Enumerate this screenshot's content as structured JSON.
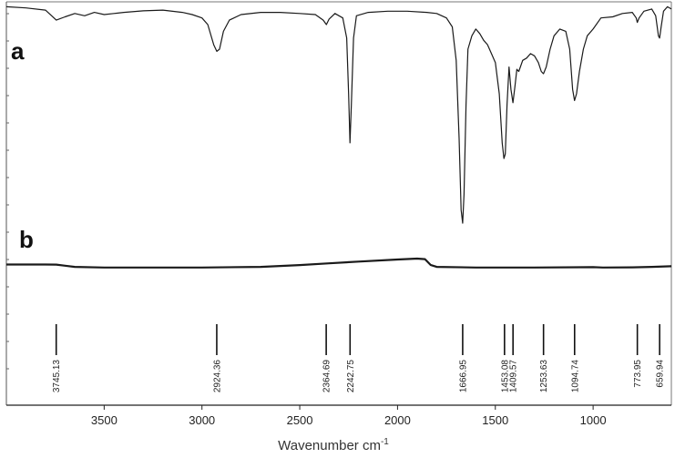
{
  "chart_data": {
    "type": "line",
    "xlabel_main": "Wavenumber cm",
    "xlabel_sup": "-1",
    "xlim": [
      4000,
      600
    ],
    "x_reversed": true,
    "x_ticks": [
      3500,
      3000,
      2500,
      2000,
      1500,
      1000
    ],
    "x_tick_labels": [
      "3500",
      "3000",
      "2500",
      "2000",
      "1500",
      "1000"
    ],
    "series": [
      {
        "name": "a",
        "points": [
          [
            4000,
            0.99
          ],
          [
            3900,
            0.985
          ],
          [
            3800,
            0.975
          ],
          [
            3745,
            0.93
          ],
          [
            3700,
            0.945
          ],
          [
            3650,
            0.96
          ],
          [
            3600,
            0.95
          ],
          [
            3550,
            0.965
          ],
          [
            3500,
            0.955
          ],
          [
            3450,
            0.96
          ],
          [
            3400,
            0.965
          ],
          [
            3300,
            0.972
          ],
          [
            3200,
            0.975
          ],
          [
            3100,
            0.965
          ],
          [
            3050,
            0.955
          ],
          [
            3000,
            0.94
          ],
          [
            2970,
            0.91
          ],
          [
            2940,
            0.82
          ],
          [
            2924,
            0.79
          ],
          [
            2910,
            0.8
          ],
          [
            2890,
            0.88
          ],
          [
            2860,
            0.93
          ],
          [
            2800,
            0.955
          ],
          [
            2700,
            0.965
          ],
          [
            2600,
            0.965
          ],
          [
            2500,
            0.96
          ],
          [
            2420,
            0.955
          ],
          [
            2380,
            0.93
          ],
          [
            2364,
            0.91
          ],
          [
            2350,
            0.935
          ],
          [
            2320,
            0.96
          ],
          [
            2280,
            0.94
          ],
          [
            2260,
            0.85
          ],
          [
            2250,
            0.6
          ],
          [
            2243,
            0.38
          ],
          [
            2236,
            0.55
          ],
          [
            2225,
            0.85
          ],
          [
            2210,
            0.95
          ],
          [
            2150,
            0.965
          ],
          [
            2050,
            0.97
          ],
          [
            1950,
            0.97
          ],
          [
            1850,
            0.965
          ],
          [
            1800,
            0.96
          ],
          [
            1750,
            0.94
          ],
          [
            1720,
            0.9
          ],
          [
            1700,
            0.75
          ],
          [
            1685,
            0.4
          ],
          [
            1675,
            0.08
          ],
          [
            1667,
            0.02
          ],
          [
            1660,
            0.15
          ],
          [
            1650,
            0.55
          ],
          [
            1640,
            0.8
          ],
          [
            1620,
            0.86
          ],
          [
            1600,
            0.89
          ],
          [
            1580,
            0.87
          ],
          [
            1560,
            0.84
          ],
          [
            1540,
            0.82
          ],
          [
            1520,
            0.78
          ],
          [
            1500,
            0.74
          ],
          [
            1480,
            0.6
          ],
          [
            1465,
            0.38
          ],
          [
            1456,
            0.31
          ],
          [
            1449,
            0.33
          ],
          [
            1440,
            0.55
          ],
          [
            1430,
            0.72
          ],
          [
            1420,
            0.62
          ],
          [
            1410,
            0.56
          ],
          [
            1400,
            0.63
          ],
          [
            1390,
            0.71
          ],
          [
            1380,
            0.7
          ],
          [
            1360,
            0.75
          ],
          [
            1340,
            0.76
          ],
          [
            1320,
            0.78
          ],
          [
            1300,
            0.77
          ],
          [
            1280,
            0.74
          ],
          [
            1265,
            0.7
          ],
          [
            1254,
            0.69
          ],
          [
            1240,
            0.72
          ],
          [
            1220,
            0.8
          ],
          [
            1200,
            0.86
          ],
          [
            1170,
            0.89
          ],
          [
            1140,
            0.88
          ],
          [
            1120,
            0.8
          ],
          [
            1105,
            0.62
          ],
          [
            1095,
            0.57
          ],
          [
            1085,
            0.6
          ],
          [
            1070,
            0.7
          ],
          [
            1050,
            0.8
          ],
          [
            1030,
            0.86
          ],
          [
            1000,
            0.89
          ],
          [
            960,
            0.94
          ],
          [
            900,
            0.945
          ],
          [
            850,
            0.96
          ],
          [
            800,
            0.965
          ],
          [
            780,
            0.94
          ],
          [
            774,
            0.92
          ],
          [
            765,
            0.94
          ],
          [
            740,
            0.97
          ],
          [
            700,
            0.98
          ],
          [
            680,
            0.95
          ],
          [
            666,
            0.86
          ],
          [
            660,
            0.85
          ],
          [
            652,
            0.9
          ],
          [
            640,
            0.97
          ],
          [
            620,
            0.99
          ],
          [
            600,
            0.98
          ]
        ]
      },
      {
        "name": "b",
        "points": [
          [
            4000,
            0.5
          ],
          [
            3800,
            0.5
          ],
          [
            3745,
            0.49
          ],
          [
            3700,
            0.4
          ],
          [
            3650,
            0.3
          ],
          [
            3500,
            0.25
          ],
          [
            3000,
            0.25
          ],
          [
            2700,
            0.3
          ],
          [
            2500,
            0.45
          ],
          [
            2350,
            0.6
          ],
          [
            2200,
            0.75
          ],
          [
            2000,
            0.92
          ],
          [
            1900,
            1.0
          ],
          [
            1860,
            0.95
          ],
          [
            1830,
            0.45
          ],
          [
            1800,
            0.3
          ],
          [
            1600,
            0.25
          ],
          [
            1300,
            0.25
          ],
          [
            1000,
            0.28
          ],
          [
            950,
            0.25
          ],
          [
            800,
            0.26
          ],
          [
            700,
            0.3
          ],
          [
            600,
            0.35
          ]
        ]
      }
    ],
    "panel_labels": [
      "a",
      "b"
    ],
    "peaks": [
      {
        "x": 3745.13,
        "label": "3745.13"
      },
      {
        "x": 2924.36,
        "label": "2924.36"
      },
      {
        "x": 2364.69,
        "label": "2364.69"
      },
      {
        "x": 2242.75,
        "label": "2242.75"
      },
      {
        "x": 1666.95,
        "label": "1666.95"
      },
      {
        "x": 1453.08,
        "label": "1453.08"
      },
      {
        "x": 1409.57,
        "label": "1409.57"
      },
      {
        "x": 1253.63,
        "label": "1253.63"
      },
      {
        "x": 1094.74,
        "label": "1094.74"
      },
      {
        "x": 773.95,
        "label": "773.95"
      },
      {
        "x": 659.94,
        "label": "659.94"
      }
    ],
    "grid": false,
    "legend": "none",
    "line_color": "#1a1a1a"
  }
}
